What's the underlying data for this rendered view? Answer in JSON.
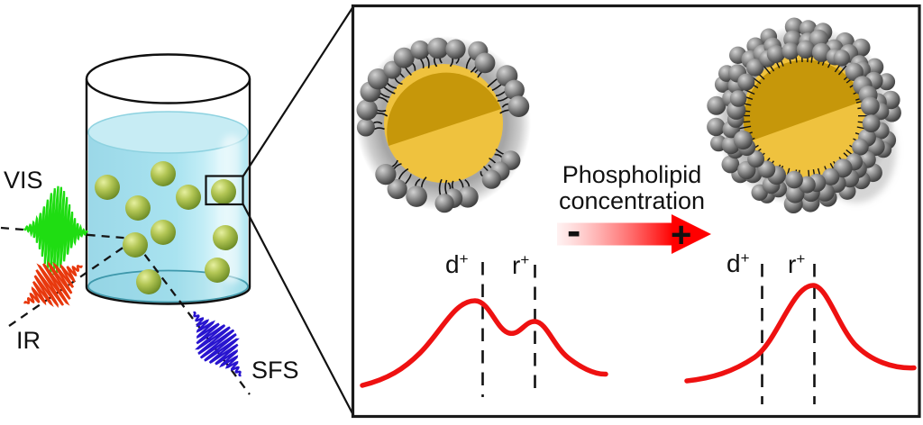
{
  "beaker_scene": {
    "vis_label": "VIS",
    "ir_label": "IR",
    "sfs_label": "SFS"
  },
  "zoom_panel": {
    "arrow_title_line1": "Phospholipid",
    "arrow_title_line2": "concentration",
    "arrow_minus": "-",
    "arrow_plus": "+",
    "left_spectrum": {
      "d_label": "d",
      "d_sup": "+",
      "r_label": "r",
      "r_sup": "+"
    },
    "right_spectrum": {
      "d_label": "d",
      "d_sup": "+",
      "r_label": "r",
      "r_sup": "+"
    }
  },
  "colors": {
    "vis_beam": "#1fdd12",
    "ir_beam": "#e8380d",
    "sfs_beam": "#2814cf",
    "spectrum_curve": "#ee1111",
    "arrow_red": "#ff0000",
    "water": "#a8e2ef",
    "droplet_core_dark": "#c6970a",
    "droplet_core_light": "#efc23e",
    "lipid_gray": "#6e6e6e",
    "particle_olive": "#9ab648",
    "line_black": "#111111"
  }
}
